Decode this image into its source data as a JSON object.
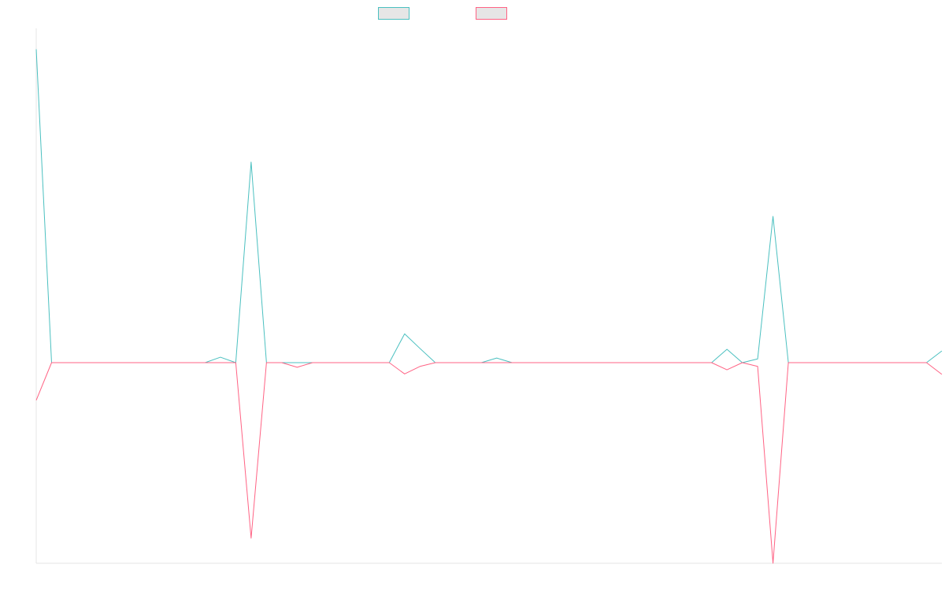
{
  "chart_data": {
    "type": "line",
    "title": "",
    "xlabel": "",
    "ylabel": "",
    "grid": false,
    "legend_position": "top-center",
    "x_count": 60,
    "series": [
      {
        "color": "#4bc0c0",
        "values": [
          0.75,
          0,
          0,
          0,
          0,
          0,
          0,
          0,
          0,
          0,
          0,
          0,
          0.013,
          0,
          0.48,
          0,
          0,
          0,
          0,
          0,
          0,
          0,
          0,
          0,
          0.069,
          0.034,
          0,
          0,
          0,
          0,
          0.011,
          0,
          0,
          0,
          0,
          0,
          0,
          0,
          0,
          0,
          0,
          0,
          0,
          0,
          0,
          0.032,
          0,
          0.009,
          0.35,
          0,
          0,
          0,
          0,
          0,
          0,
          0,
          0,
          0,
          0,
          0.028
        ]
      },
      {
        "color": "#ff6384",
        "values": [
          -0.09,
          0,
          0,
          0,
          0,
          0,
          0,
          0,
          0,
          0,
          0,
          0,
          0,
          0,
          -0.42,
          0,
          0,
          -0.011,
          0,
          0,
          0,
          0,
          0,
          0,
          -0.027,
          -0.009,
          0,
          0,
          0,
          0,
          0,
          0,
          0,
          0,
          0,
          0,
          0,
          0,
          0,
          0,
          0,
          0,
          0,
          0,
          0,
          -0.017,
          0,
          -0.009,
          -0.48,
          0,
          0,
          0,
          0,
          0,
          0,
          0,
          0,
          0,
          0,
          -0.028
        ]
      }
    ],
    "ylim": [
      -0.48,
      0.8
    ]
  }
}
